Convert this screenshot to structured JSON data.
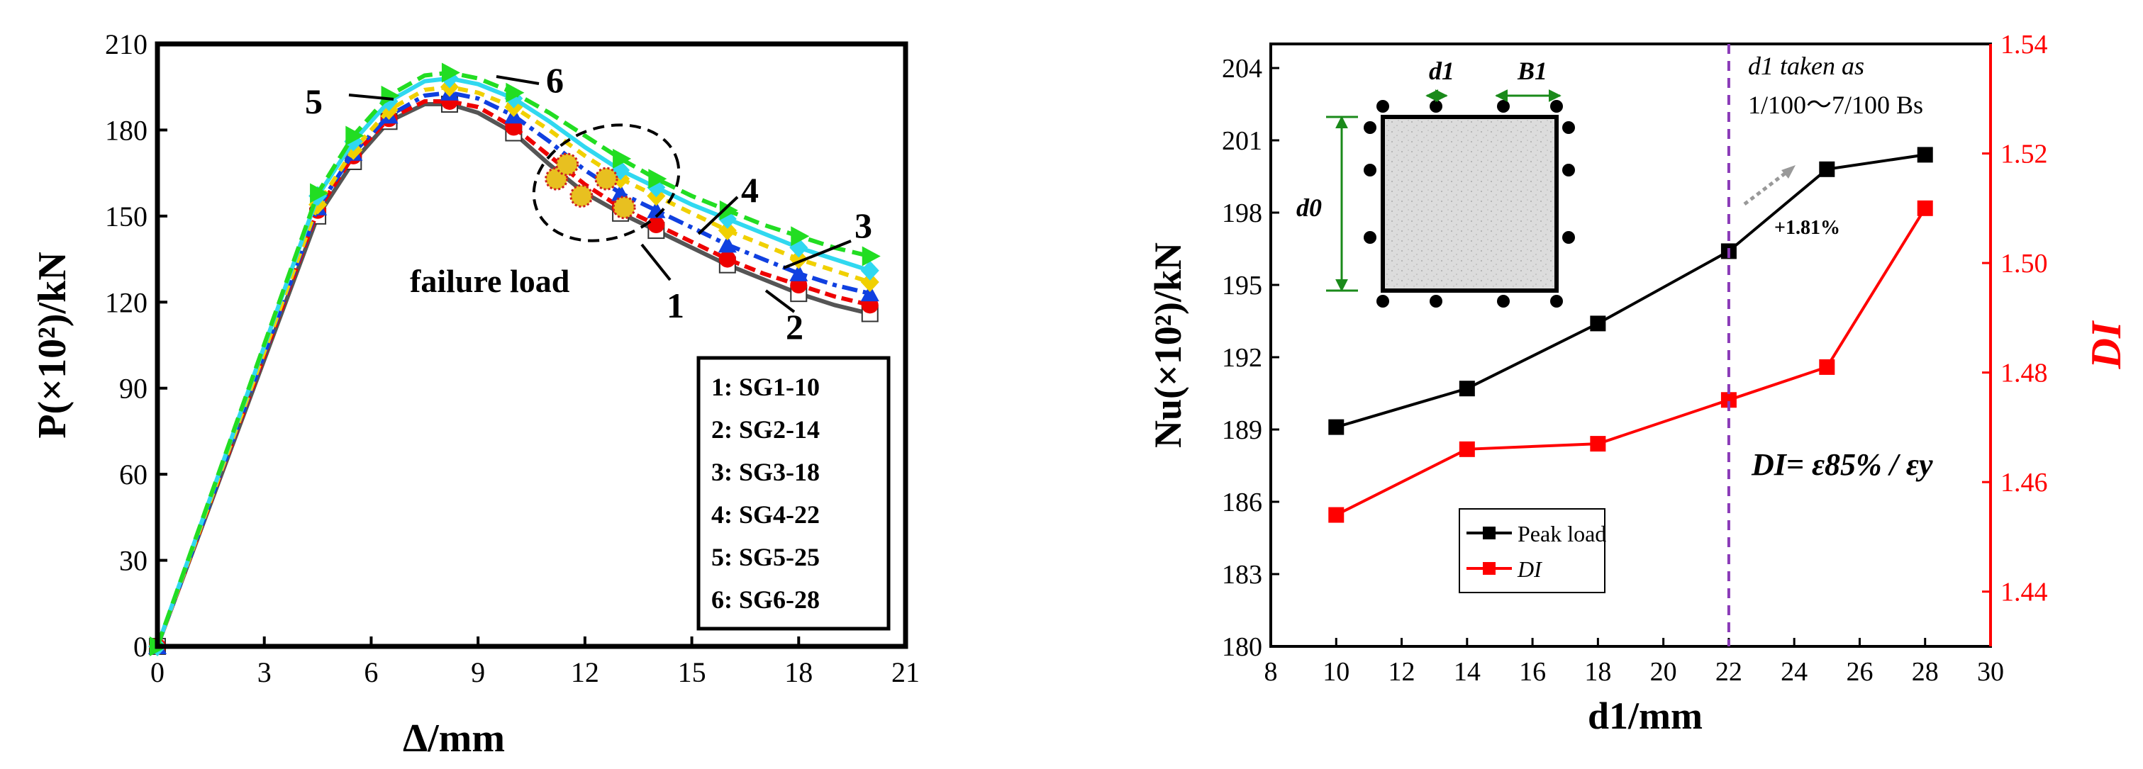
{
  "chart_data": [
    {
      "type": "line",
      "panel": "left",
      "xlabel": "Δ/mm",
      "ylabel": "P(×10²)/kN",
      "xlim": [
        0,
        21
      ],
      "ylim": [
        0,
        210
      ],
      "xticks": [
        0,
        3,
        6,
        9,
        12,
        15,
        18,
        21
      ],
      "yticks": [
        0,
        30,
        60,
        90,
        120,
        150,
        180,
        210
      ],
      "series": [
        {
          "name": "SG1-10",
          "id": "1",
          "color": "#555555",
          "marker": "square-open",
          "points": [
            [
              0,
              0
            ],
            [
              4.5,
              150
            ],
            [
              5.5,
              169
            ],
            [
              6.5,
              183
            ],
            [
              7.5,
              189
            ],
            [
              8.2,
              189
            ],
            [
              9,
              186
            ],
            [
              10,
              179
            ],
            [
              11,
              168
            ],
            [
              12,
              158
            ],
            [
              13,
              151
            ],
            [
              14,
              145
            ],
            [
              15,
              139
            ],
            [
              16,
              133
            ],
            [
              17,
              128
            ],
            [
              18,
              123
            ],
            [
              19,
              119
            ],
            [
              20,
              116
            ]
          ]
        },
        {
          "name": "SG2-14",
          "id": "2",
          "color": "#ee0000",
          "marker": "circle",
          "points": [
            [
              0,
              0
            ],
            [
              4.5,
              152
            ],
            [
              5.5,
              171
            ],
            [
              6.5,
              184
            ],
            [
              7.5,
              190
            ],
            [
              8.2,
              190
            ],
            [
              9,
              188
            ],
            [
              10,
              181
            ],
            [
              11,
              171
            ],
            [
              12,
              161
            ],
            [
              13,
              153
            ],
            [
              14,
              147
            ],
            [
              15,
              141
            ],
            [
              16,
              135
            ],
            [
              17,
              130
            ],
            [
              18,
              126
            ],
            [
              19,
              122
            ],
            [
              20,
              119
            ]
          ]
        },
        {
          "name": "SG3-18",
          "id": "3",
          "color": "#1040e0",
          "marker": "triangle-up",
          "points": [
            [
              0,
              0
            ],
            [
              4.5,
              153
            ],
            [
              5.5,
              172
            ],
            [
              6.5,
              185
            ],
            [
              7.5,
              192
            ],
            [
              8.2,
              193
            ],
            [
              9,
              191
            ],
            [
              10,
              185
            ],
            [
              11,
              176
            ],
            [
              12,
              166
            ],
            [
              13,
              158
            ],
            [
              14,
              152
            ],
            [
              15,
              146
            ],
            [
              16,
              140
            ],
            [
              17,
              135
            ],
            [
              18,
              130
            ],
            [
              19,
              126
            ],
            [
              20,
              123
            ]
          ]
        },
        {
          "name": "SG4-22",
          "id": "4",
          "color": "#f0d000",
          "marker": "diamond",
          "points": [
            [
              0,
              0
            ],
            [
              4.5,
              154
            ],
            [
              5.5,
              173
            ],
            [
              6.5,
              187
            ],
            [
              7.5,
              194
            ],
            [
              8.2,
              195
            ],
            [
              9,
              193
            ],
            [
              10,
              188
            ],
            [
              11,
              180
            ],
            [
              12,
              171
            ],
            [
              13,
              163
            ],
            [
              14,
              157
            ],
            [
              15,
              151
            ],
            [
              16,
              145
            ],
            [
              17,
              140
            ],
            [
              18,
              135
            ],
            [
              19,
              131
            ],
            [
              20,
              127
            ]
          ]
        },
        {
          "name": "SG5-25",
          "id": "5",
          "color": "#30d8f0",
          "marker": "diamond",
          "points": [
            [
              0,
              0
            ],
            [
              4.5,
              157
            ],
            [
              5.5,
              176
            ],
            [
              6.5,
              190
            ],
            [
              7.5,
              197
            ],
            [
              8.2,
              198
            ],
            [
              9,
              196
            ],
            [
              10,
              191
            ],
            [
              11,
              183
            ],
            [
              12,
              174
            ],
            [
              13,
              166
            ],
            [
              14,
              160
            ],
            [
              15,
              154
            ],
            [
              16,
              149
            ],
            [
              17,
              144
            ],
            [
              18,
              139
            ],
            [
              19,
              135
            ],
            [
              20,
              131
            ]
          ]
        },
        {
          "name": "SG6-28",
          "id": "6",
          "color": "#22dd22",
          "marker": "triangle-right",
          "points": [
            [
              0,
              0
            ],
            [
              4.5,
              158
            ],
            [
              5.5,
              178
            ],
            [
              6.5,
              192
            ],
            [
              7.5,
              199
            ],
            [
              8.2,
              200
            ],
            [
              9,
              198
            ],
            [
              10,
              193
            ],
            [
              11,
              186
            ],
            [
              12,
              178
            ],
            [
              13,
              170
            ],
            [
              14,
              163
            ],
            [
              15,
              157
            ],
            [
              16,
              152
            ],
            [
              17,
              147
            ],
            [
              18,
              143
            ],
            [
              19,
              139
            ],
            [
              20,
              136
            ]
          ]
        }
      ],
      "failure_points": [
        [
          11.2,
          163
        ],
        [
          12.6,
          163
        ],
        [
          11.9,
          157
        ],
        [
          13.1,
          153
        ],
        [
          11.5,
          168
        ]
      ],
      "annotations": {
        "failure_load": "failure load",
        "labels": [
          "1",
          "2",
          "3",
          "4",
          "5",
          "6"
        ]
      },
      "legend": [
        "1: SG1-10",
        "2: SG2-14",
        "3: SG3-18",
        "4: SG4-22",
        "5: SG5-25",
        "6: SG6-28"
      ],
      "legend_position": "bottom-right"
    },
    {
      "type": "line",
      "panel": "right",
      "xlabel": "d1/mm",
      "ylabel_left": "Nu(×10²)/kN",
      "ylabel_right": "DI",
      "xlim": [
        8,
        30
      ],
      "ylim_left": [
        180,
        205
      ],
      "ylim_right": [
        1.43,
        1.54
      ],
      "xticks": [
        8,
        10,
        12,
        14,
        16,
        18,
        20,
        22,
        24,
        26,
        28,
        30
      ],
      "yticks_left": [
        180,
        183,
        186,
        189,
        192,
        195,
        198,
        201,
        204
      ],
      "yticks_right": [
        1.44,
        1.46,
        1.48,
        1.5,
        1.52,
        1.54
      ],
      "series": [
        {
          "name": "Peak load",
          "axis": "left",
          "color": "#000000",
          "x": [
            10,
            14,
            18,
            22,
            25,
            28
          ],
          "y": [
            189.1,
            190.7,
            193.4,
            196.4,
            199.8,
            200.4
          ]
        },
        {
          "name": "DI",
          "axis": "right",
          "color": "#ff0000",
          "x": [
            10,
            14,
            18,
            22,
            25,
            28
          ],
          "y": [
            1.454,
            1.466,
            1.467,
            1.475,
            1.481,
            1.51
          ]
        }
      ],
      "vline_x": 22,
      "annotations": {
        "increase": "+1.81%",
        "d1_note_line1": "d1 taken as",
        "d1_note_line2": "1/100～7/100 Bs",
        "di_formula": "DI= ε85% / εy",
        "inset_d1": "d1",
        "inset_b1": "B1",
        "inset_d0": "d0"
      },
      "legend": [
        "Peak load",
        "DI"
      ],
      "legend_position": "bottom-left"
    }
  ]
}
